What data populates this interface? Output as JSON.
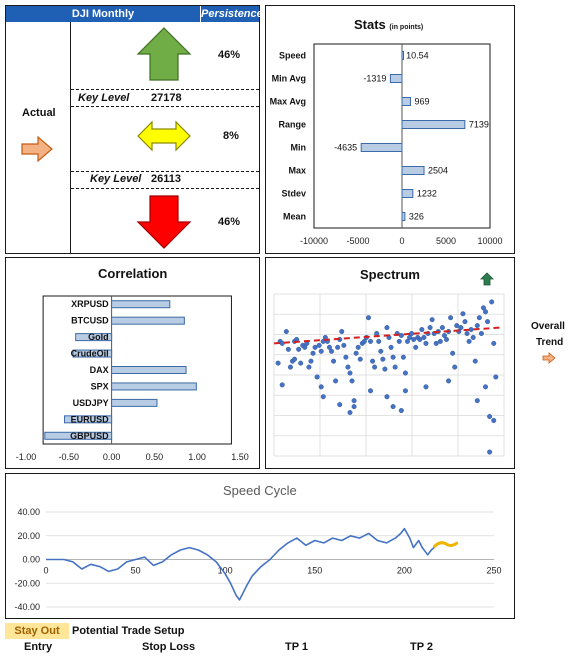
{
  "signal_panel": {
    "title": "DJI Monthly",
    "persistence_label": "Persistence",
    "actual_label": "Actual",
    "up_pct": "46%",
    "neutral_pct": "8%",
    "down_pct": "46%",
    "key_level_label": "Key Level",
    "key_level_upper": "27178",
    "key_level_lower": "26113",
    "colors": {
      "header": "#1f5fb4",
      "up": "#70ad47",
      "neutral": "#ffff00",
      "down": "#ff0000",
      "actual_arrow": "#f4b183"
    }
  },
  "trend_panel": {
    "label_line1": "Overall",
    "label_line2": "Trend"
  },
  "bottom": {
    "stay_out_label": "Stay Out",
    "potential_setup_label": "Potential Trade Setup",
    "entry_label": "Entry",
    "stop_loss_label": "Stop Loss",
    "tp1_label": "TP 1",
    "tp2_label": "TP 2",
    "stay_out_color": "#ffe699"
  },
  "chart_data": [
    {
      "id": "stats",
      "type": "bar",
      "orientation": "horizontal",
      "title": "Stats",
      "subtitle": "(in points)",
      "categories": [
        "Speed",
        "Min Avg",
        "Max Avg",
        "Range",
        "Min",
        "Max",
        "Stdev",
        "Mean"
      ],
      "values": [
        10.54,
        -1319,
        969,
        7139,
        -4635,
        2504,
        1232,
        326
      ],
      "value_labels": [
        "10.54",
        "-1319",
        "969",
        "7139",
        "-4635",
        "2504",
        "1232",
        "326"
      ],
      "xlim": [
        -10000,
        10000
      ],
      "xticks": [
        -10000,
        -5000,
        0,
        5000,
        10000
      ],
      "xtick_labels": [
        "-10000",
        "-5000",
        "0",
        "5000",
        "10000"
      ]
    },
    {
      "id": "correlation",
      "type": "bar",
      "orientation": "horizontal",
      "title": "Correlation",
      "categories": [
        "XRPUSD",
        "BTCUSD",
        "Gold",
        "CrudeOil",
        "DAX",
        "SPX",
        "USDJPY",
        "EURUSD",
        "GBPUSD"
      ],
      "values": [
        0.68,
        0.85,
        -0.42,
        -0.45,
        0.87,
        0.99,
        0.53,
        -0.55,
        -0.78
      ],
      "xlim": [
        -1.0,
        1.5
      ],
      "xticks": [
        -1.0,
        -0.5,
        0.0,
        0.5,
        1.0,
        1.5
      ],
      "xtick_labels": [
        "-1.00",
        "-0.50",
        "0.00",
        "0.50",
        "1.00",
        "1.50"
      ]
    },
    {
      "id": "spectrum",
      "type": "scatter",
      "title": "Spectrum",
      "trend_arrow_color": "#2e7d4f",
      "points": [
        [
          2,
          47
        ],
        [
          3,
          58
        ],
        [
          4,
          57
        ],
        [
          4,
          36
        ],
        [
          6,
          63
        ],
        [
          7,
          54
        ],
        [
          8,
          45
        ],
        [
          9,
          48
        ],
        [
          10,
          49
        ],
        [
          10,
          58
        ],
        [
          11,
          59
        ],
        [
          12,
          54
        ],
        [
          13,
          47
        ],
        [
          14,
          56
        ],
        [
          15,
          55
        ],
        [
          16,
          57
        ],
        [
          17,
          45
        ],
        [
          18,
          48
        ],
        [
          19,
          52
        ],
        [
          20,
          55
        ],
        [
          21,
          40
        ],
        [
          22,
          56
        ],
        [
          23,
          53
        ],
        [
          23,
          35
        ],
        [
          24,
          58
        ],
        [
          25,
          60
        ],
        [
          26,
          58
        ],
        [
          27,
          55
        ],
        [
          28,
          53
        ],
        [
          29,
          48
        ],
        [
          30,
          38
        ],
        [
          31,
          55
        ],
        [
          32,
          59
        ],
        [
          33,
          63
        ],
        [
          34,
          56
        ],
        [
          35,
          50
        ],
        [
          36,
          45
        ],
        [
          37,
          42
        ],
        [
          38,
          38
        ],
        [
          39,
          25
        ],
        [
          40,
          52
        ],
        [
          41,
          55
        ],
        [
          42,
          49
        ],
        [
          43,
          57
        ],
        [
          44,
          58
        ],
        [
          45,
          60
        ],
        [
          46,
          70
        ],
        [
          47,
          58
        ],
        [
          48,
          48
        ],
        [
          49,
          45
        ],
        [
          50,
          62
        ],
        [
          51,
          58
        ],
        [
          52,
          53
        ],
        [
          53,
          49
        ],
        [
          54,
          44
        ],
        [
          55,
          65
        ],
        [
          56,
          60
        ],
        [
          57,
          55
        ],
        [
          58,
          50
        ],
        [
          59,
          45
        ],
        [
          60,
          62
        ],
        [
          61,
          58
        ],
        [
          62,
          61
        ],
        [
          63,
          50
        ],
        [
          64,
          42
        ],
        [
          65,
          58
        ],
        [
          66,
          60
        ],
        [
          67,
          62
        ],
        [
          68,
          59
        ],
        [
          69,
          55
        ],
        [
          70,
          60
        ],
        [
          71,
          59
        ],
        [
          72,
          64
        ],
        [
          73,
          60
        ],
        [
          74,
          57
        ],
        [
          75,
          62
        ],
        [
          76,
          65
        ],
        [
          77,
          69
        ],
        [
          78,
          62
        ],
        [
          79,
          57
        ],
        [
          80,
          63
        ],
        [
          81,
          58
        ],
        [
          82,
          65
        ],
        [
          83,
          61
        ],
        [
          84,
          59
        ],
        [
          85,
          63
        ],
        [
          86,
          70
        ],
        [
          87,
          52
        ],
        [
          88,
          45
        ],
        [
          89,
          66
        ],
        [
          90,
          63
        ],
        [
          91,
          65
        ],
        [
          92,
          72
        ],
        [
          93,
          68
        ],
        [
          94,
          62
        ],
        [
          95,
          58
        ],
        [
          96,
          64
        ],
        [
          97,
          60
        ],
        [
          98,
          48
        ],
        [
          99,
          66
        ],
        [
          100,
          70
        ],
        [
          101,
          62
        ],
        [
          102,
          75
        ],
        [
          103,
          73
        ],
        [
          104,
          68
        ],
        [
          105,
          20
        ],
        [
          106,
          78
        ],
        [
          107,
          57
        ],
        [
          108,
          40
        ],
        [
          24,
          30
        ],
        [
          32,
          26
        ],
        [
          37,
          22
        ],
        [
          39,
          28
        ],
        [
          47,
          33
        ],
        [
          58,
          25
        ],
        [
          64,
          33
        ],
        [
          74,
          35
        ],
        [
          85,
          38
        ],
        [
          99,
          28
        ],
        [
          103,
          35
        ],
        [
          107,
          18
        ],
        [
          105,
          2
        ],
        [
          62,
          23
        ],
        [
          55,
          30
        ]
      ],
      "trend_line": [
        [
          0,
          57
        ],
        [
          110,
          65
        ]
      ],
      "xlim": [
        0,
        112
      ],
      "ylim": [
        0,
        82
      ],
      "grid": true
    },
    {
      "id": "speed_cycle",
      "type": "line",
      "title": "Speed Cycle",
      "x": [
        0,
        5,
        10,
        15,
        20,
        25,
        30,
        35,
        40,
        45,
        50,
        55,
        60,
        65,
        70,
        75,
        80,
        85,
        90,
        95,
        100,
        103,
        106,
        108,
        110,
        112,
        115,
        120,
        125,
        130,
        135,
        140,
        145,
        150,
        155,
        160,
        165,
        170,
        175,
        180,
        185,
        190,
        195,
        198,
        200,
        203,
        205,
        208,
        210,
        213,
        215,
        218
      ],
      "y": [
        0,
        0,
        0,
        -2,
        -8,
        -4,
        -6,
        -10,
        -8,
        -2,
        0,
        2,
        -5,
        -2,
        4,
        8,
        10,
        8,
        4,
        -2,
        -12,
        -20,
        -30,
        -34,
        -28,
        -22,
        -14,
        -6,
        0,
        8,
        14,
        18,
        12,
        16,
        14,
        18,
        16,
        20,
        18,
        22,
        16,
        14,
        18,
        22,
        26,
        18,
        10,
        16,
        10,
        4,
        8,
        12
      ],
      "xlim": [
        0,
        250
      ],
      "ylim": [
        -40,
        40
      ],
      "xticks": [
        0,
        50,
        100,
        150,
        200,
        250
      ],
      "yticks": [
        40,
        20,
        0,
        -20,
        -40
      ],
      "ytick_labels": [
        "40.00",
        "20.00",
        "0.00",
        "-20.00",
        "-40.00"
      ],
      "line_color": "#4472c4",
      "end_marker_color": "#f0b400",
      "grid": true
    }
  ]
}
